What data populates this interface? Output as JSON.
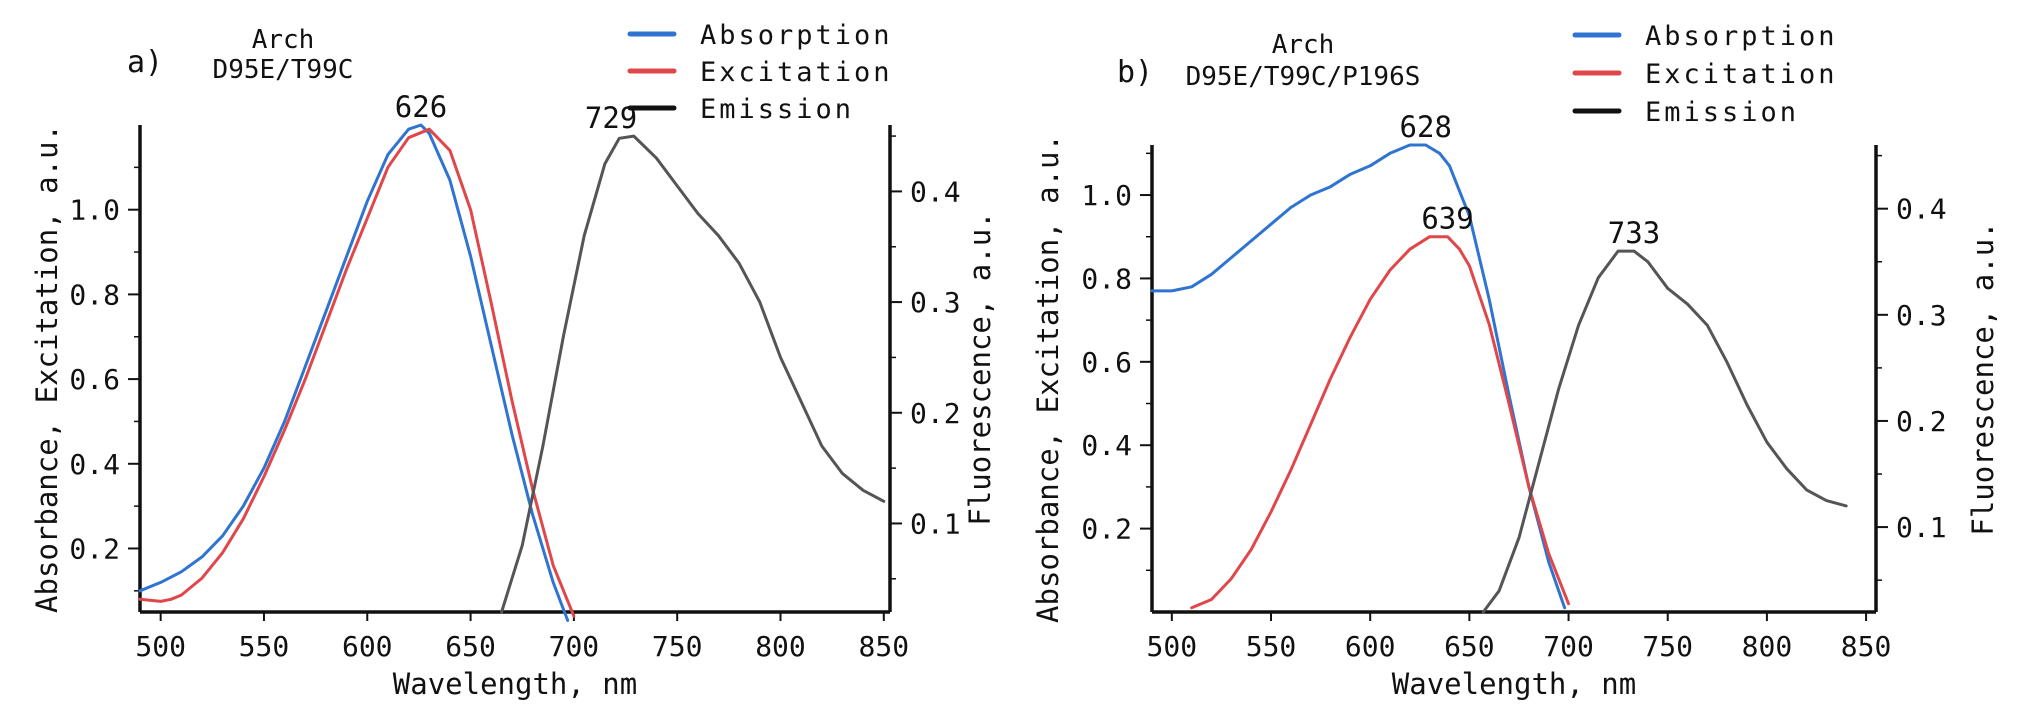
{
  "chart_data": [
    {
      "type": "line",
      "panel_label": "a)",
      "title": "Arch",
      "subtitle": "D95E/T99C",
      "xlabel": "Wavelength, nm",
      "ylabel": "Absorbance, Excitation, a.u.",
      "y2label": "Fluorescence, a.u.",
      "xlim": [
        490,
        853
      ],
      "ylim": [
        0.05,
        1.2
      ],
      "y2lim": [
        0.02,
        0.46
      ],
      "xticks": [
        500,
        550,
        600,
        650,
        700,
        750,
        800,
        850
      ],
      "yticks": [
        0.2,
        0.4,
        0.6,
        0.8,
        1.0
      ],
      "ytick_labels": [
        "0.2",
        "0.4",
        "0.6",
        "0.8",
        "1.0"
      ],
      "y2ticks": [
        0.1,
        0.2,
        0.3,
        0.4
      ],
      "y2tick_labels": [
        "0.1",
        "0.2",
        "0.3",
        "0.4"
      ],
      "legend_position": "top-center",
      "series": [
        {
          "name": "Absorption",
          "color": "#2f74d0",
          "axis": "left",
          "x": [
            490,
            500,
            510,
            520,
            530,
            540,
            550,
            560,
            570,
            580,
            590,
            600,
            610,
            620,
            626,
            630,
            640,
            650,
            660,
            670,
            680,
            690,
            697
          ],
          "y": [
            0.1,
            0.12,
            0.145,
            0.18,
            0.23,
            0.3,
            0.39,
            0.5,
            0.63,
            0.76,
            0.89,
            1.02,
            1.13,
            1.19,
            1.2,
            1.18,
            1.07,
            0.89,
            0.68,
            0.47,
            0.28,
            0.12,
            0.03
          ]
        },
        {
          "name": "Excitation",
          "color": "#e0474a",
          "axis": "left",
          "x": [
            490,
            500,
            505,
            510,
            520,
            530,
            540,
            550,
            560,
            570,
            580,
            590,
            600,
            610,
            620,
            630,
            640,
            650,
            660,
            670,
            680,
            690,
            700
          ],
          "y": [
            0.08,
            0.075,
            0.08,
            0.09,
            0.13,
            0.19,
            0.27,
            0.37,
            0.48,
            0.6,
            0.73,
            0.86,
            0.98,
            1.1,
            1.17,
            1.19,
            1.14,
            1.0,
            0.78,
            0.55,
            0.34,
            0.16,
            0.04
          ]
        },
        {
          "name": "Emission",
          "color": "#555555",
          "axis": "right",
          "x": [
            665,
            675,
            685,
            695,
            705,
            715,
            722,
            729,
            740,
            750,
            760,
            770,
            780,
            790,
            800,
            810,
            820,
            830,
            840,
            850
          ],
          "y": [
            0.02,
            0.08,
            0.17,
            0.27,
            0.36,
            0.425,
            0.448,
            0.45,
            0.43,
            0.405,
            0.38,
            0.36,
            0.335,
            0.3,
            0.25,
            0.21,
            0.17,
            0.145,
            0.13,
            0.12
          ]
        }
      ],
      "annotations": [
        {
          "text": "626",
          "x": 626,
          "y": 1.2,
          "axis": "left"
        },
        {
          "text": "729",
          "x": 718,
          "y": 0.45,
          "axis": "right"
        }
      ]
    },
    {
      "type": "line",
      "panel_label": "b)",
      "title": "Arch",
      "subtitle": "D95E/T99C/P196S",
      "xlabel": "Wavelength, nm",
      "ylabel": "Absorbance, Excitation, a.u.",
      "y2label": "Fluorescence, a.u.",
      "xlim": [
        490,
        855
      ],
      "ylim": [
        0.0,
        1.12
      ],
      "y2lim": [
        0.02,
        0.46
      ],
      "xticks": [
        500,
        550,
        600,
        650,
        700,
        750,
        800,
        850
      ],
      "yticks": [
        0.2,
        0.4,
        0.6,
        0.8,
        1.0
      ],
      "ytick_labels": [
        "0.2",
        "0.4",
        "0.6",
        "0.8",
        "1.0"
      ],
      "y2ticks": [
        0.1,
        0.2,
        0.3,
        0.4
      ],
      "y2tick_labels": [
        "0.1",
        "0.2",
        "0.3",
        "0.4"
      ],
      "legend_position": "top-center",
      "series": [
        {
          "name": "Absorption",
          "color": "#2f74d0",
          "axis": "left",
          "x": [
            490,
            500,
            510,
            520,
            530,
            540,
            550,
            560,
            570,
            580,
            590,
            600,
            610,
            620,
            628,
            635,
            640,
            650,
            660,
            670,
            680,
            690,
            698
          ],
          "y": [
            0.77,
            0.77,
            0.78,
            0.81,
            0.85,
            0.89,
            0.93,
            0.97,
            1.0,
            1.02,
            1.05,
            1.07,
            1.1,
            1.12,
            1.12,
            1.1,
            1.07,
            0.95,
            0.75,
            0.52,
            0.3,
            0.12,
            0.01
          ]
        },
        {
          "name": "Excitation",
          "color": "#e0474a",
          "axis": "left",
          "x": [
            510,
            520,
            530,
            540,
            550,
            560,
            570,
            580,
            590,
            600,
            610,
            620,
            630,
            639,
            645,
            650,
            660,
            670,
            680,
            690,
            700
          ],
          "y": [
            0.01,
            0.03,
            0.08,
            0.15,
            0.24,
            0.34,
            0.45,
            0.56,
            0.66,
            0.75,
            0.82,
            0.87,
            0.9,
            0.9,
            0.87,
            0.83,
            0.69,
            0.5,
            0.3,
            0.14,
            0.02
          ]
        },
        {
          "name": "Emission",
          "color": "#555555",
          "axis": "right",
          "x": [
            657,
            665,
            675,
            685,
            695,
            705,
            715,
            725,
            733,
            740,
            750,
            760,
            770,
            780,
            790,
            800,
            810,
            820,
            830,
            840
          ],
          "y": [
            0.02,
            0.04,
            0.09,
            0.16,
            0.23,
            0.29,
            0.335,
            0.36,
            0.36,
            0.35,
            0.325,
            0.31,
            0.29,
            0.255,
            0.215,
            0.18,
            0.155,
            0.135,
            0.125,
            0.12
          ]
        }
      ],
      "annotations": [
        {
          "text": "628",
          "x": 628,
          "y": 1.12,
          "axis": "left"
        },
        {
          "text": "639",
          "x": 639,
          "y": 0.9,
          "axis": "left"
        },
        {
          "text": "733",
          "x": 733,
          "y": 0.36,
          "axis": "right"
        }
      ]
    }
  ]
}
